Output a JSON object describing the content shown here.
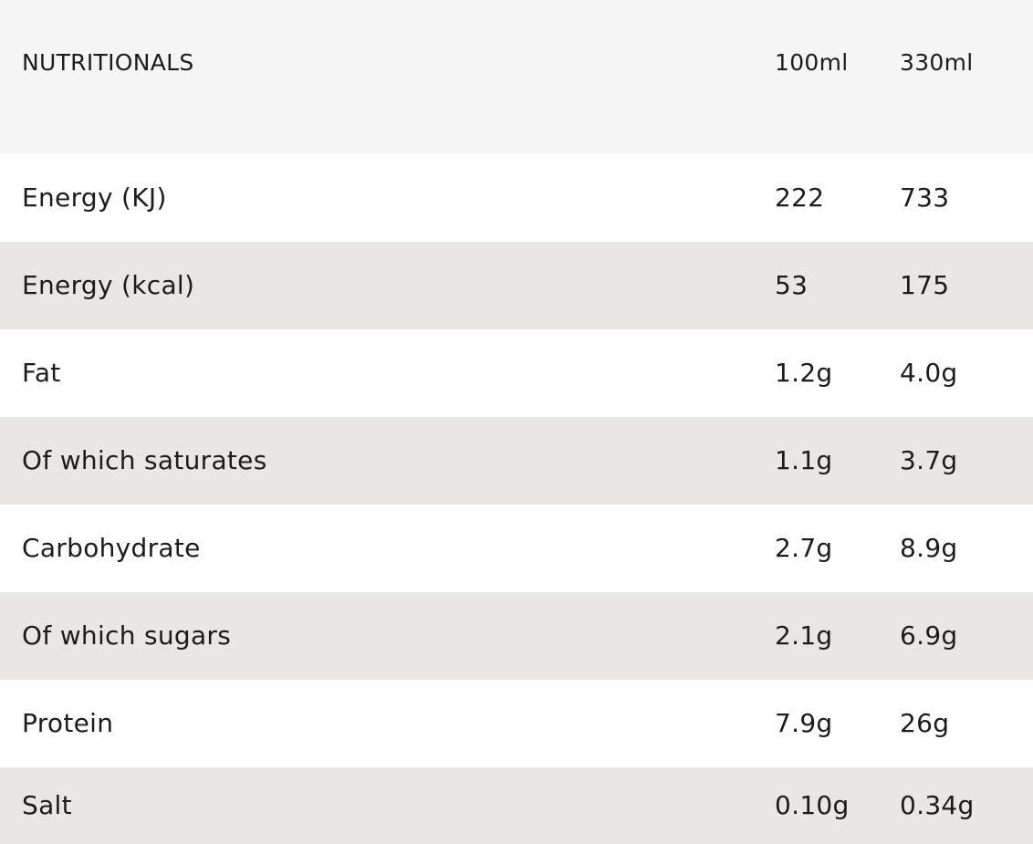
{
  "header": {
    "label": "NUTRITIONALS",
    "col1": "100ml",
    "col2": "330ml"
  },
  "rows": [
    {
      "name": "Energy (KJ)",
      "v100": "222",
      "v330": "733"
    },
    {
      "name": "Energy (kcal)",
      "v100": "53",
      "v330": "175"
    },
    {
      "name": "Fat",
      "v100": "1.2g",
      "v330": "4.0g"
    },
    {
      "name": "Of which saturates",
      "v100": "1.1g",
      "v330": "3.7g"
    },
    {
      "name": "Carbohydrate",
      "v100": "2.7g",
      "v330": "8.9g"
    },
    {
      "name": "Of which sugars",
      "v100": "2.1g",
      "v330": "6.9g"
    },
    {
      "name": "Protein",
      "v100": "7.9g",
      "v330": "26g"
    },
    {
      "name": "Salt",
      "v100": "0.10g",
      "v330": "0.34g"
    }
  ]
}
